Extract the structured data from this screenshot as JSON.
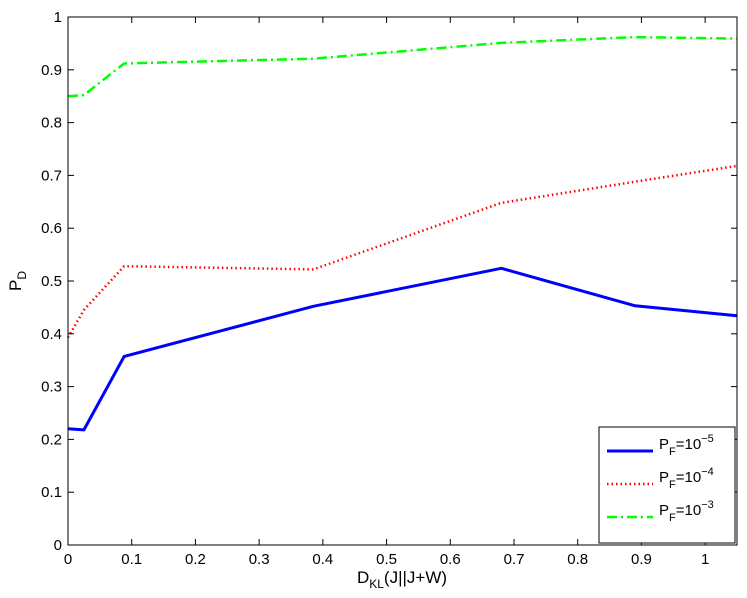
{
  "chart_data": {
    "type": "line",
    "xlabel": {
      "main": "D",
      "sub": "KL",
      "rest": "(J||J+W)"
    },
    "ylabel": {
      "main": "P",
      "sub": "D"
    },
    "xlim": [
      0,
      1.05
    ],
    "ylim": [
      0,
      1
    ],
    "xticks": [
      0,
      0.1,
      0.2,
      0.3,
      0.4,
      0.5,
      0.6,
      0.7,
      0.8,
      0.9,
      1
    ],
    "xtick_labels": [
      "0",
      "0.1",
      "0.2",
      "0.3",
      "0.4",
      "0.5",
      "0.6",
      "0.7",
      "0.8",
      "0.9",
      "1"
    ],
    "yticks": [
      0,
      0.1,
      0.2,
      0.3,
      0.4,
      0.5,
      0.6,
      0.7,
      0.8,
      0.9,
      1
    ],
    "ytick_labels": [
      "0",
      "0.1",
      "0.2",
      "0.3",
      "0.4",
      "0.5",
      "0.6",
      "0.7",
      "0.8",
      "0.9",
      "1"
    ],
    "grid": false,
    "legend_position": "bottom-right",
    "series": [
      {
        "name": "P_F=10^-5",
        "legend": {
          "base": "P",
          "sub": "F",
          "mid": "=10",
          "sup": "−5"
        },
        "color": "#0000ff",
        "style": "solid",
        "x": [
          0,
          0.025,
          0.088,
          0.385,
          0.68,
          0.89,
          1.05
        ],
        "y": [
          0.22,
          0.218,
          0.357,
          0.452,
          0.524,
          0.453,
          0.434
        ]
      },
      {
        "name": "P_F=10^-4",
        "legend": {
          "base": "P",
          "sub": "F",
          "mid": "=10",
          "sup": "−4"
        },
        "color": "#ff0000",
        "style": "dotted",
        "x": [
          0,
          0.025,
          0.088,
          0.385,
          0.68,
          0.89,
          1.05
        ],
        "y": [
          0.393,
          0.445,
          0.528,
          0.522,
          0.648,
          0.688,
          0.718
        ]
      },
      {
        "name": "P_F=10^-3",
        "legend": {
          "base": "P",
          "sub": "F",
          "mid": "=10",
          "sup": "−3"
        },
        "color": "#00ff00",
        "style": "dashdot",
        "x": [
          0,
          0.025,
          0.088,
          0.385,
          0.68,
          0.89,
          1.05
        ],
        "y": [
          0.85,
          0.852,
          0.912,
          0.921,
          0.951,
          0.962,
          0.959
        ]
      }
    ]
  }
}
